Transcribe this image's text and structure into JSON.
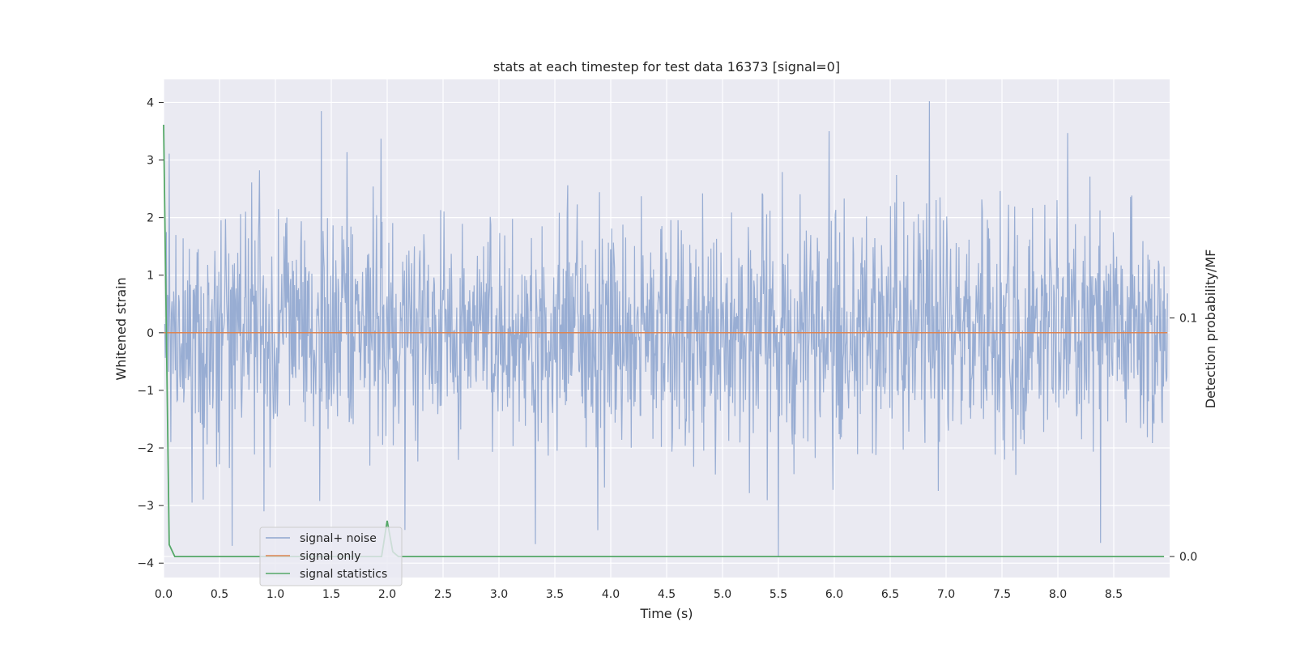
{
  "chart_data": {
    "type": "line",
    "title": "stats at each timestep for test data 16373 [signal=0]",
    "xlabel": "Time (s)",
    "ylabel": "Whitened strain",
    "y2label": "Detection probability/MF",
    "xlim": [
      0,
      9.0
    ],
    "ylim": [
      -4.25,
      4.4
    ],
    "y2lim": [
      -0.0088,
      0.2
    ],
    "x_ticks": [
      "0.0",
      "0.5",
      "1.0",
      "1.5",
      "2.0",
      "2.5",
      "3.0",
      "3.5",
      "4.0",
      "4.5",
      "5.0",
      "5.5",
      "6.0",
      "6.5",
      "7.0",
      "7.5",
      "8.0",
      "8.5"
    ],
    "y_ticks": [
      "4",
      "3",
      "2",
      "1",
      "0",
      "−1",
      "−2",
      "−3",
      "−4"
    ],
    "y2_ticks": [
      "0.1",
      "0.0"
    ],
    "grid": true,
    "legend_position": "bottom-left",
    "series": [
      {
        "name": "signal+ noise",
        "axis": "left",
        "color": "#8fa6cf",
        "description_range": [
          -3.9,
          4.0
        ],
        "notable_points": [
          [
            1.41,
            3.85
          ],
          [
            6.85,
            4.02
          ],
          [
            5.5,
            -3.9
          ],
          [
            8.38,
            -3.65
          ],
          [
            0.9,
            -3.1
          ]
        ]
      },
      {
        "name": "signal only",
        "axis": "left",
        "color": "#dd8452",
        "x": [
          0.0,
          8.98
        ],
        "values": [
          0,
          0
        ]
      },
      {
        "name": "signal statistics",
        "axis": "right",
        "color": "#55a868",
        "x": [
          0.0,
          0.05,
          0.1,
          0.15,
          1.9,
          1.95,
          2.0,
          2.05,
          2.1,
          2.15,
          8.95
        ],
        "values": [
          0.181,
          0.005,
          0.0,
          0.0,
          0.0,
          0.0,
          0.015,
          0.002,
          0.0,
          0.0,
          0.0
        ]
      }
    ]
  }
}
